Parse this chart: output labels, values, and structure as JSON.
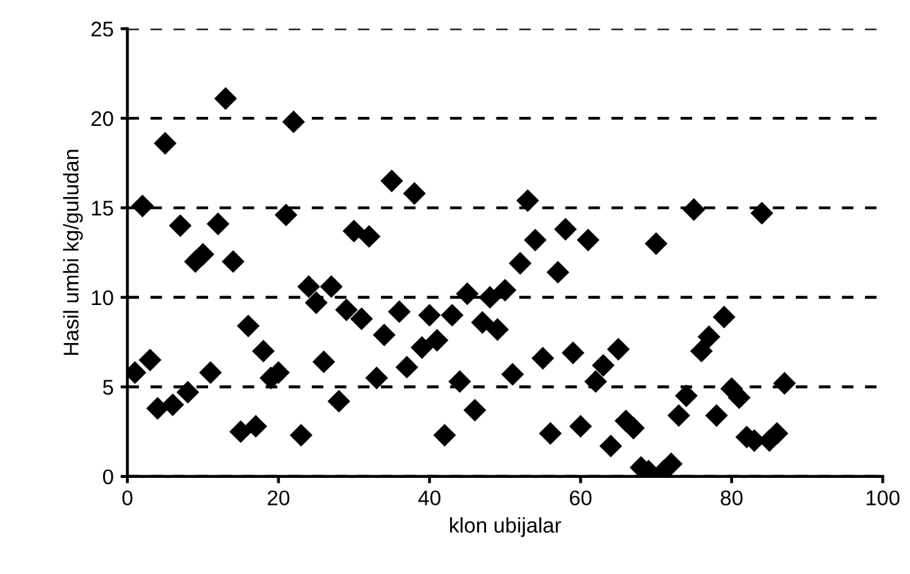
{
  "chart_data": {
    "type": "scatter",
    "xlabel": "klon ubijalar",
    "ylabel": "Hasil umbi kg/guludan",
    "x": [
      1,
      2,
      3,
      4,
      5,
      6,
      7,
      8,
      9,
      10,
      11,
      12,
      13,
      14,
      15,
      16,
      17,
      18,
      19,
      20,
      21,
      22,
      23,
      24,
      25,
      26,
      27,
      28,
      29,
      30,
      31,
      32,
      33,
      34,
      35,
      36,
      37,
      38,
      39,
      40,
      41,
      42,
      43,
      44,
      45,
      46,
      47,
      48,
      49,
      50,
      51,
      52,
      53,
      54,
      55,
      56,
      57,
      58,
      59,
      60,
      61,
      62,
      63,
      64,
      65,
      66,
      67,
      68,
      69,
      70,
      71,
      72,
      73,
      74,
      75,
      76,
      77,
      78,
      79,
      80,
      81,
      82,
      83,
      84,
      85,
      86,
      87
    ],
    "series": [
      {
        "color": "#000000",
        "values": [
          5.8,
          15.1,
          6.5,
          3.8,
          18.6,
          4.0,
          14.0,
          4.7,
          12.0,
          12.4,
          5.8,
          14.1,
          21.1,
          12.0,
          2.5,
          8.4,
          2.8,
          7.0,
          5.5,
          5.8,
          14.6,
          19.8,
          2.3,
          10.6,
          9.7,
          6.4,
          10.6,
          4.2,
          9.3,
          13.7,
          8.8,
          13.4,
          5.5,
          7.9,
          16.5,
          9.2,
          6.1,
          15.8,
          7.2,
          9.0,
          7.6,
          2.3,
          9.0,
          5.3,
          10.2,
          3.7,
          8.6,
          10.0,
          8.2,
          10.4,
          5.7,
          11.9,
          15.4,
          13.2,
          6.6,
          2.4,
          11.4,
          13.8,
          6.9,
          2.8,
          13.2,
          5.3,
          6.2,
          1.7,
          7.1,
          3.1,
          2.7,
          0.5,
          0.3,
          13.0,
          0.3,
          0.7,
          3.4,
          4.5,
          14.9,
          7.0,
          7.8,
          3.4,
          8.9,
          4.9,
          4.4,
          2.2,
          2.0,
          14.7,
          2.0,
          2.4,
          5.2
        ]
      }
    ],
    "xlim": [
      0,
      100
    ],
    "xticks": [
      0,
      20,
      40,
      60,
      80,
      100
    ],
    "ylim": [
      0,
      25
    ],
    "yticks": [
      0,
      5,
      10,
      15,
      20,
      25
    ],
    "grid": "y",
    "marker": "diamond"
  }
}
